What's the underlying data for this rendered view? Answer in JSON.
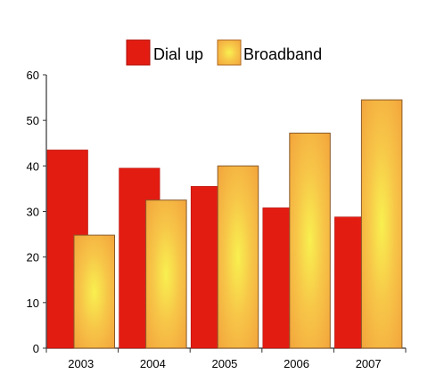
{
  "chart_data": {
    "type": "bar",
    "title": "",
    "xlabel": "",
    "ylabel": "",
    "categories": [
      "2003",
      "2004",
      "2005",
      "2006",
      "2007"
    ],
    "series": [
      {
        "name": "Dial up",
        "values": [
          43.5,
          39.5,
          35.5,
          30.8,
          28.8
        ]
      },
      {
        "name": "Broadband",
        "values": [
          24.8,
          32.5,
          40.0,
          47.2,
          54.5
        ]
      }
    ],
    "ylim": [
      0,
      60
    ],
    "yticks": [
      "0",
      "10",
      "20",
      "30",
      "40",
      "50",
      "60"
    ],
    "grid": false,
    "legend_position": "top-center",
    "colors": {
      "dial_up": "#e31c12",
      "broadband_center": "#f8f050",
      "broadband_edge": "#f2a03a",
      "axis": "#333333",
      "outline": "#555555"
    }
  }
}
